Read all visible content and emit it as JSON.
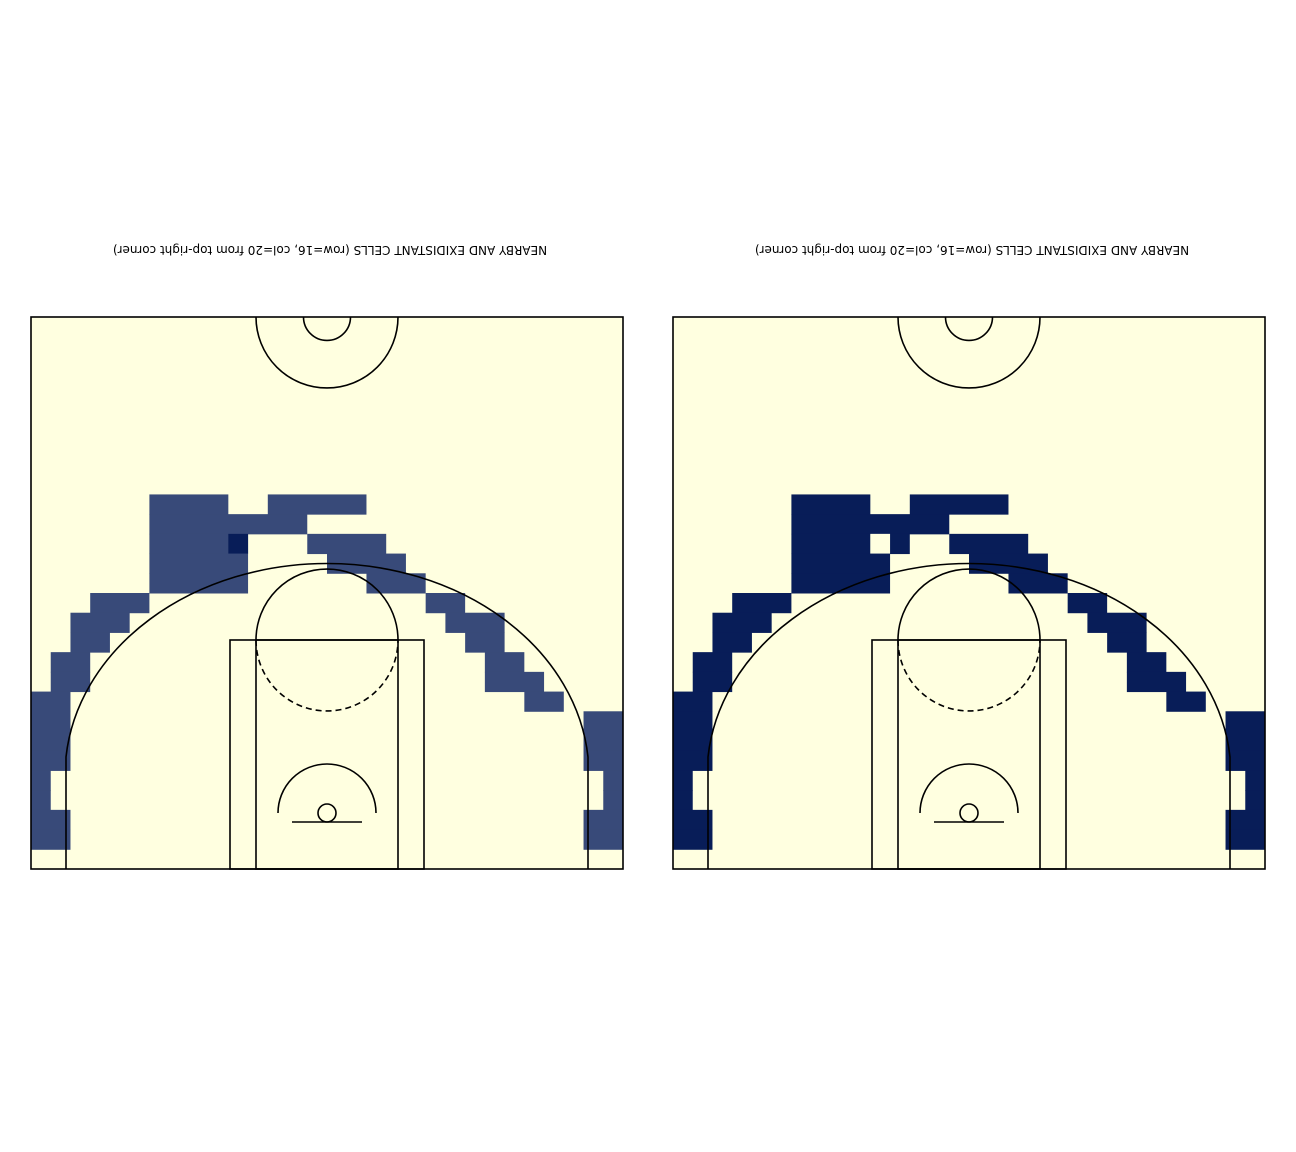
{
  "colors": {
    "background": "#ffffe0",
    "line": "#000000",
    "nearby": "#384a79",
    "exidistant": "#081d58",
    "target": "#081d58"
  },
  "chart_data": [
    {
      "type": "heatmap",
      "title": "NEARBY AND EXIDISTANT CELLS (row=16, col=20 from top-right corner)",
      "grid": {
        "rows": 28,
        "cols": 30
      },
      "cells": [
        {
          "row": 9,
          "cols": [
            [
              6,
              9
            ],
            [
              12,
              16
            ]
          ]
        },
        {
          "row": 10,
          "cols": [
            [
              6,
              13
            ]
          ]
        },
        {
          "row": 11,
          "cols": [
            [
              6,
              10
            ],
            [
              14,
              17
            ]
          ]
        },
        {
          "row": 12,
          "cols": [
            [
              6,
              10
            ],
            [
              15,
              18
            ]
          ]
        },
        {
          "row": 13,
          "cols": [
            [
              6,
              10
            ],
            [
              17,
              19
            ]
          ]
        },
        {
          "row": 14,
          "cols": [
            [
              3,
              5
            ],
            [
              20,
              21
            ]
          ]
        },
        {
          "row": 15,
          "cols": [
            [
              2,
              4
            ],
            [
              21,
              23
            ]
          ]
        },
        {
          "row": 16,
          "cols": [
            [
              2,
              3
            ],
            [
              22,
              23
            ]
          ]
        },
        {
          "row": 17,
          "cols": [
            [
              1,
              2
            ],
            [
              23,
              24
            ]
          ]
        },
        {
          "row": 18,
          "cols": [
            [
              1,
              2
            ],
            [
              23,
              25
            ]
          ]
        },
        {
          "row": 19,
          "cols": [
            [
              0,
              1
            ],
            [
              25,
              26
            ]
          ]
        },
        {
          "row": 20,
          "cols": [
            [
              0,
              1
            ],
            [
              28,
              29
            ]
          ]
        },
        {
          "row": 21,
          "cols": [
            [
              0,
              1
            ],
            [
              28,
              29
            ]
          ]
        },
        {
          "row": 22,
          "cols": [
            [
              0,
              1
            ],
            [
              28,
              29
            ]
          ]
        },
        {
          "row": 23,
          "cols": [
            [
              0,
              0
            ],
            [
              29,
              29
            ]
          ]
        },
        {
          "row": 24,
          "cols": [
            [
              0,
              0
            ],
            [
              29,
              29
            ]
          ]
        },
        {
          "row": 25,
          "cols": [
            [
              0,
              1
            ],
            [
              28,
              29
            ]
          ]
        },
        {
          "row": 26,
          "cols": [
            [
              0,
              1
            ],
            [
              28,
              29
            ]
          ]
        }
      ],
      "target_cell": {
        "row": 11,
        "col": 10,
        "value": "target"
      },
      "fill": "nearby"
    },
    {
      "type": "heatmap",
      "title": "NEARBY AND EXIDISTANT CELLS (row=16, col=20 from top-right corner)",
      "grid": {
        "rows": 28,
        "cols": 30
      },
      "cells": [
        {
          "row": 9,
          "cols": [
            [
              6,
              9
            ],
            [
              12,
              16
            ]
          ]
        },
        {
          "row": 10,
          "cols": [
            [
              6,
              13
            ]
          ]
        },
        {
          "row": 11,
          "cols": [
            [
              6,
              9
            ],
            [
              11,
              10
            ],
            [
              14,
              17
            ]
          ]
        },
        {
          "row": 12,
          "cols": [
            [
              6,
              10
            ],
            [
              15,
              18
            ]
          ]
        },
        {
          "row": 13,
          "cols": [
            [
              6,
              10
            ],
            [
              17,
              19
            ]
          ]
        },
        {
          "row": 14,
          "cols": [
            [
              3,
              5
            ],
            [
              20,
              21
            ]
          ]
        },
        {
          "row": 15,
          "cols": [
            [
              2,
              4
            ],
            [
              21,
              23
            ]
          ]
        },
        {
          "row": 16,
          "cols": [
            [
              2,
              3
            ],
            [
              22,
              23
            ]
          ]
        },
        {
          "row": 17,
          "cols": [
            [
              1,
              2
            ],
            [
              23,
              24
            ]
          ]
        },
        {
          "row": 18,
          "cols": [
            [
              1,
              2
            ],
            [
              23,
              25
            ]
          ]
        },
        {
          "row": 19,
          "cols": [
            [
              0,
              1
            ],
            [
              25,
              26
            ]
          ]
        },
        {
          "row": 20,
          "cols": [
            [
              0,
              1
            ],
            [
              28,
              29
            ]
          ]
        },
        {
          "row": 21,
          "cols": [
            [
              0,
              1
            ],
            [
              28,
              29
            ]
          ]
        },
        {
          "row": 22,
          "cols": [
            [
              0,
              1
            ],
            [
              28,
              29
            ]
          ]
        },
        {
          "row": 23,
          "cols": [
            [
              0,
              0
            ],
            [
              29,
              29
            ]
          ]
        },
        {
          "row": 24,
          "cols": [
            [
              0,
              0
            ],
            [
              29,
              29
            ]
          ]
        },
        {
          "row": 25,
          "cols": [
            [
              0,
              1
            ],
            [
              28,
              29
            ]
          ]
        },
        {
          "row": 26,
          "cols": [
            [
              0,
              1
            ],
            [
              28,
              29
            ]
          ]
        }
      ],
      "empty_cell": {
        "row": 11,
        "col": 10
      },
      "fill": "exidistant"
    }
  ]
}
